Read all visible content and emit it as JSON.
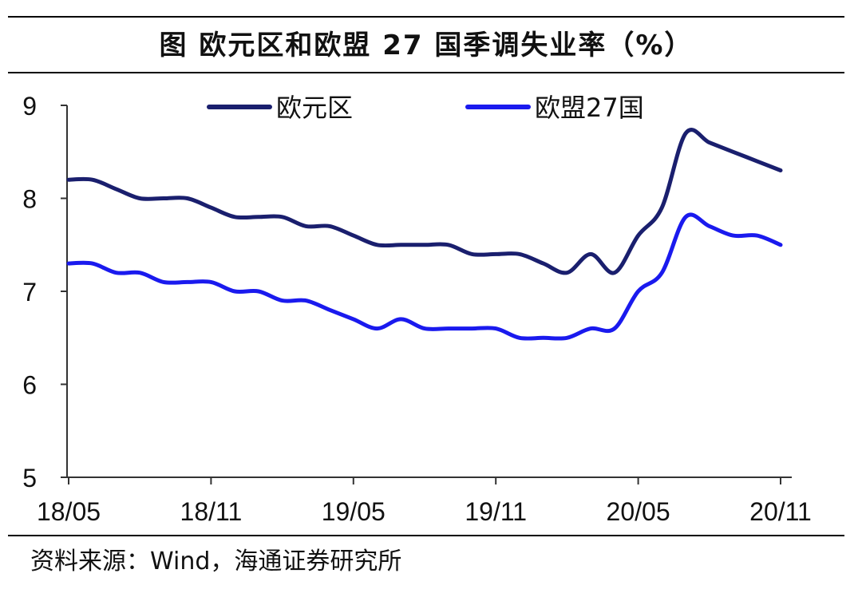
{
  "title": "图  欧元区和欧盟 27 国季调失业率（%）",
  "source": "资料来源：Wind，海通证券研究所",
  "colors": {
    "euro_area": "#1a1f6e",
    "eu27": "#1a1aee",
    "axis": "#333333",
    "text": "#111111"
  },
  "chart_data": {
    "type": "line",
    "title": "",
    "xlabel": "",
    "ylabel": "",
    "ylim": [
      5,
      9
    ],
    "yticks": [
      5,
      6,
      7,
      8,
      9
    ],
    "grid": false,
    "legend_position": "top",
    "x": [
      "18/05",
      "18/06",
      "18/07",
      "18/08",
      "18/09",
      "18/10",
      "18/11",
      "18/12",
      "19/01",
      "19/02",
      "19/03",
      "19/04",
      "19/05",
      "19/06",
      "19/07",
      "19/08",
      "19/09",
      "19/10",
      "19/11",
      "19/12",
      "20/01",
      "20/02",
      "20/03",
      "20/04",
      "20/05",
      "20/06",
      "20/07",
      "20/08",
      "20/09",
      "20/10",
      "20/11"
    ],
    "xtick_labels": [
      "18/05",
      "18/11",
      "19/05",
      "19/11",
      "20/05",
      "20/11"
    ],
    "series": [
      {
        "name": "欧元区",
        "color": "#1a1f6e",
        "values": [
          8.2,
          8.2,
          8.1,
          8.0,
          8.0,
          8.0,
          7.9,
          7.8,
          7.8,
          7.8,
          7.7,
          7.7,
          7.6,
          7.5,
          7.5,
          7.5,
          7.5,
          7.4,
          7.4,
          7.4,
          7.3,
          7.2,
          7.4,
          7.2,
          7.6,
          7.9,
          8.7,
          8.6,
          8.5,
          8.4,
          8.3
        ]
      },
      {
        "name": "欧盟27国",
        "color": "#1a1aee",
        "values": [
          7.3,
          7.3,
          7.2,
          7.2,
          7.1,
          7.1,
          7.1,
          7.0,
          7.0,
          6.9,
          6.9,
          6.8,
          6.7,
          6.6,
          6.7,
          6.6,
          6.6,
          6.6,
          6.6,
          6.5,
          6.5,
          6.5,
          6.6,
          6.6,
          7.0,
          7.2,
          7.8,
          7.7,
          7.6,
          7.6,
          7.5
        ]
      }
    ]
  }
}
